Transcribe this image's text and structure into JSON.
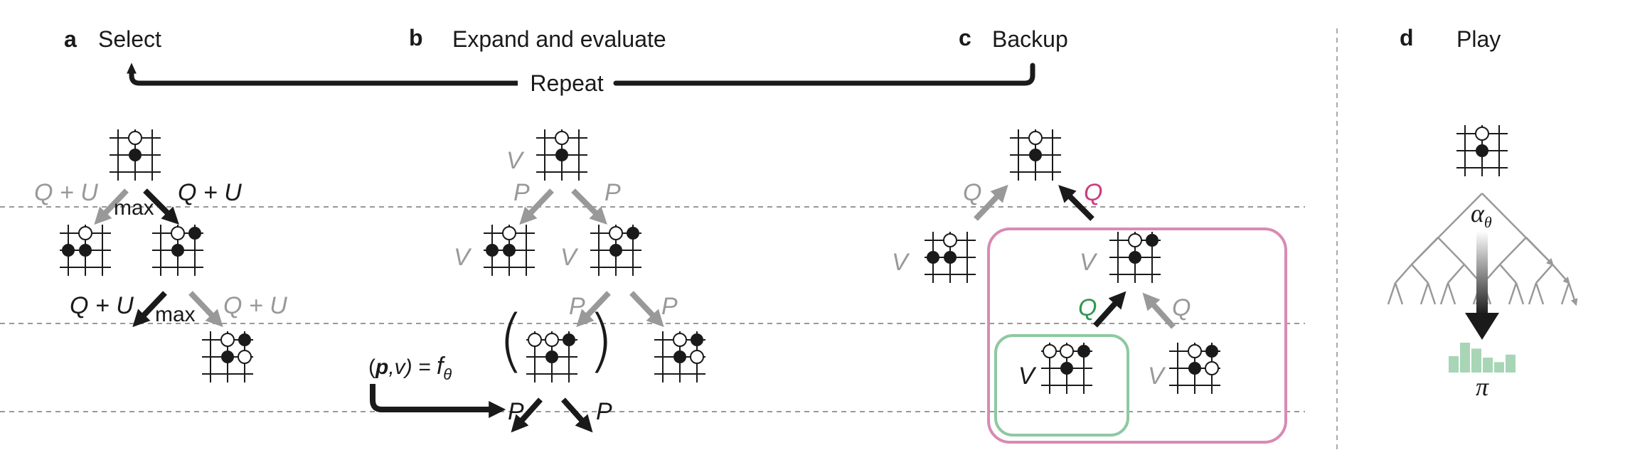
{
  "panels": {
    "a": {
      "letter": "a",
      "title": "Select"
    },
    "b": {
      "letter": "b",
      "title": "Expand and evaluate"
    },
    "c": {
      "letter": "c",
      "title": "Backup"
    },
    "d": {
      "letter": "d",
      "title": "Play"
    }
  },
  "repeat_label": "Repeat",
  "labels": {
    "q_plus_u": "Q + U",
    "max": "max",
    "v": "V",
    "p": "P",
    "q": "Q",
    "net_lhs": "(",
    "net_p": "p",
    "net_rest": ",v) = ",
    "net_f": "f",
    "net_theta": "θ",
    "alpha": "α",
    "alpha_sub": "θ",
    "pi": "π"
  },
  "colors": {
    "edge_gray": "#999999",
    "dark": "#1a1a1a",
    "backup_pink": "#cc3d7f",
    "leaf_green": "#2e9950",
    "green_box": "#8ec9a0",
    "pink_box": "#d98ab2",
    "pi_bars": "#a8d5b6",
    "divider": "#aaaaaa"
  },
  "policy_bars": [
    0.55,
    1.0,
    0.8,
    0.5,
    0.35,
    0.6
  ]
}
